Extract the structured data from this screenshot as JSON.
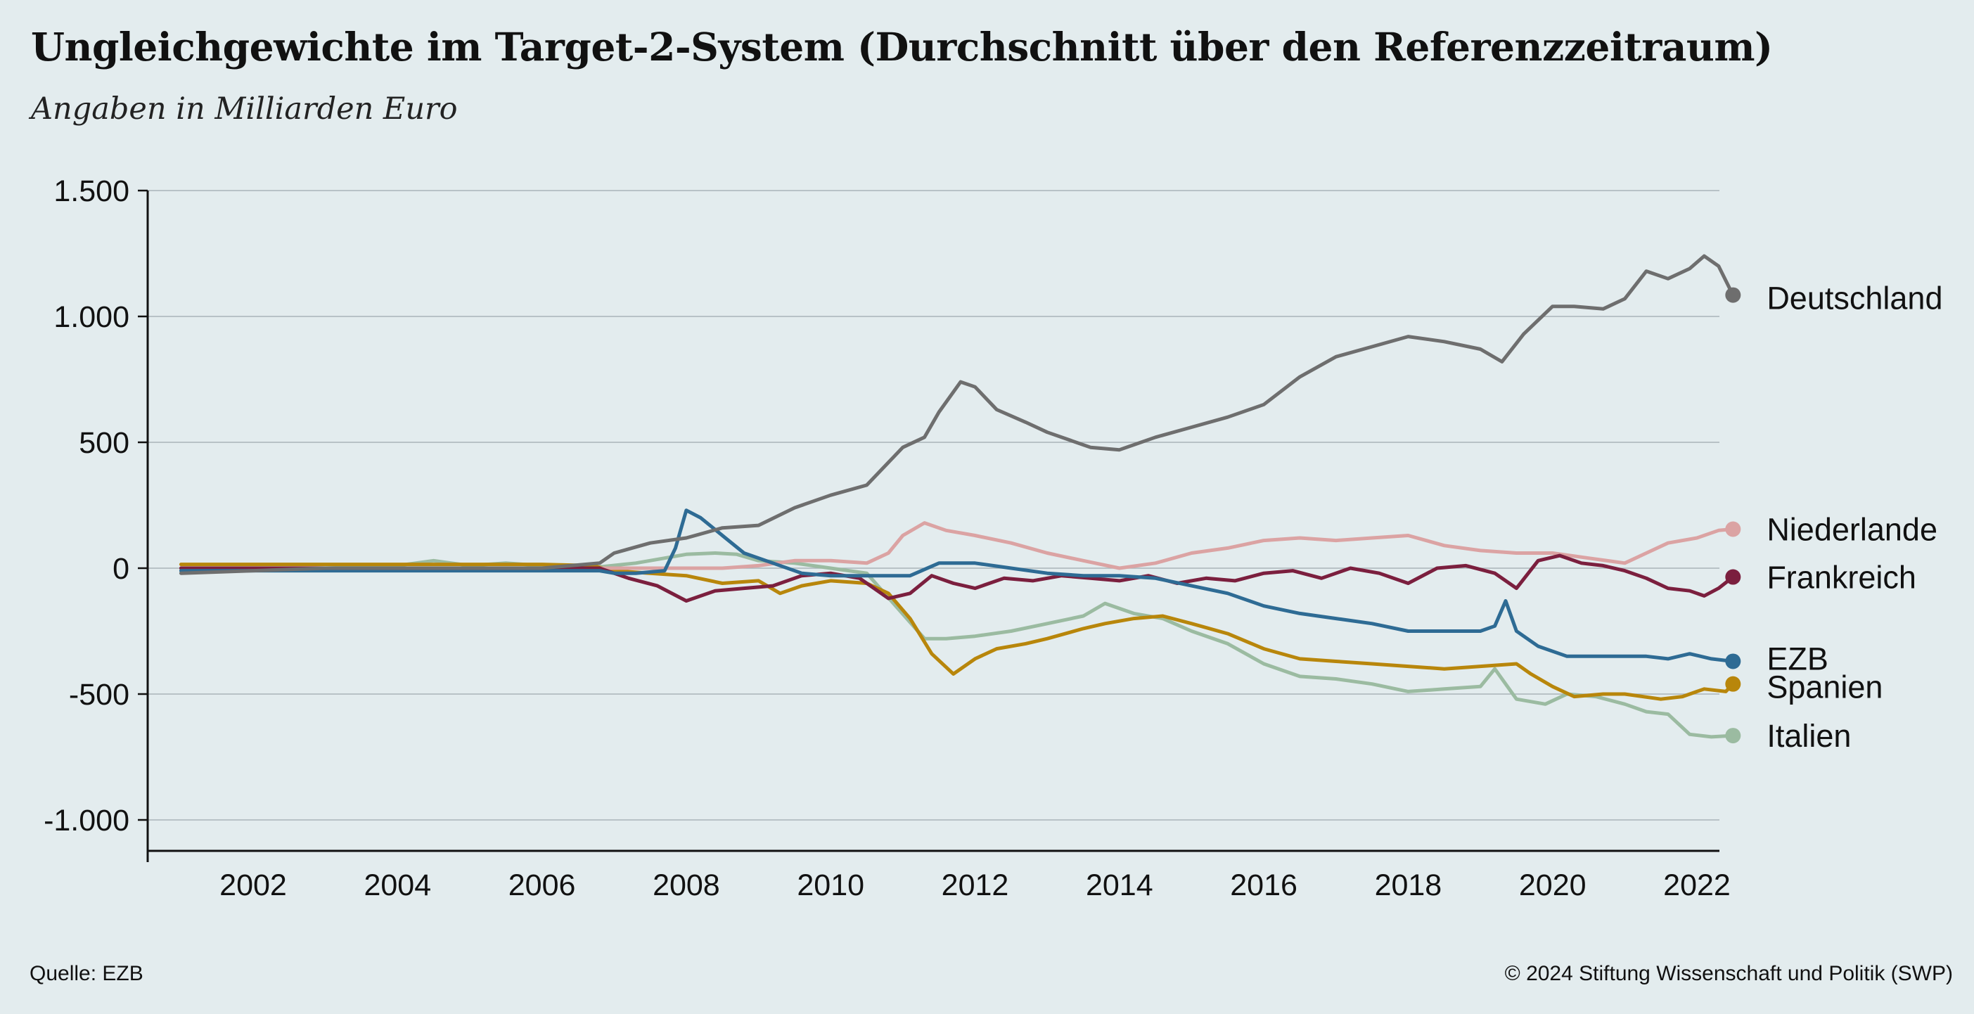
{
  "header": {
    "title": "Ungleichgewichte im Target-2-System (Durchschnitt über den Referenzzeitraum)",
    "subtitle": "Angaben in Milliarden Euro"
  },
  "footer": {
    "source": "Quelle: EZB",
    "copyright": "© 2024 Stiftung Wissenschaft und Politik (SWP)"
  },
  "chart_data": {
    "type": "line",
    "title": "Ungleichgewichte im Target-2-System (Durchschnitt über den Referenzzeitraum)",
    "subtitle": "Angaben in Milliarden Euro",
    "xlabel": "",
    "ylabel": "",
    "xlim": [
      2000.5,
      2022.6
    ],
    "ylim": [
      -1100,
      1500
    ],
    "y_ticks": [
      1500,
      1000,
      500,
      0,
      -500,
      -1000
    ],
    "y_tick_labels": [
      "1.500",
      "1.000",
      "500",
      "0",
      "-500",
      "-1.000"
    ],
    "x_ticks": [
      2002,
      2004,
      2006,
      2008,
      2010,
      2012,
      2014,
      2016,
      2018,
      2020,
      2022
    ],
    "x_tick_labels": [
      "2002",
      "2004",
      "2006",
      "2008",
      "2010",
      "2012",
      "2014",
      "2016",
      "2018",
      "2020",
      "2022"
    ],
    "grid": "horizontal",
    "legend": "direct labels at line ends (right)",
    "colors": {
      "background": "#e3ecee",
      "grid": "#a9b4b8",
      "axis": "#111111"
    },
    "series": [
      {
        "name": "Italien",
        "color": "#9bbba1",
        "x": [
          2001,
          2002,
          2003,
          2004,
          2004.5,
          2005,
          2005.5,
          2006,
          2006.8,
          2007.3,
          2007.7,
          2008,
          2008.4,
          2008.7,
          2009,
          2009.5,
          2010,
          2010.5,
          2010.9,
          2011.3,
          2011.6,
          2012,
          2012.5,
          2013,
          2013.5,
          2013.8,
          2014.2,
          2014.6,
          2015,
          2015.5,
          2016,
          2016.5,
          2017,
          2017.5,
          2018,
          2018.5,
          2019,
          2019.2,
          2019.5,
          2019.9,
          2020.2,
          2020.6,
          2021,
          2021.3,
          2021.6,
          2021.9,
          2022.2,
          2022.5
        ],
        "values": [
          0,
          0,
          0,
          10,
          30,
          10,
          20,
          10,
          5,
          20,
          40,
          55,
          60,
          55,
          30,
          20,
          0,
          -20,
          -150,
          -280,
          -280,
          -270,
          -250,
          -220,
          -190,
          -140,
          -180,
          -200,
          -250,
          -300,
          -380,
          -430,
          -440,
          -460,
          -490,
          -480,
          -470,
          -400,
          -520,
          -540,
          -500,
          -510,
          -540,
          -570,
          -580,
          -660,
          -670,
          -665
        ]
      },
      {
        "name": "Spanien",
        "color": "#b8860b",
        "x": [
          2001,
          2002,
          2003,
          2004,
          2005,
          2006,
          2006.7,
          2007,
          2007.5,
          2008,
          2008.5,
          2009,
          2009.3,
          2009.6,
          2010,
          2010.5,
          2010.8,
          2011.1,
          2011.4,
          2011.7,
          2012,
          2012.3,
          2012.7,
          2013,
          2013.5,
          2013.8,
          2014.2,
          2014.6,
          2015,
          2015.5,
          2016,
          2016.5,
          2017,
          2017.5,
          2018,
          2018.5,
          2019,
          2019.5,
          2019.7,
          2020,
          2020.3,
          2020.7,
          2021,
          2021.5,
          2021.8,
          2022.1,
          2022.4,
          2022.5
        ],
        "values": [
          15,
          15,
          15,
          15,
          15,
          15,
          10,
          -10,
          -20,
          -30,
          -60,
          -50,
          -100,
          -70,
          -50,
          -60,
          -100,
          -200,
          -340,
          -420,
          -360,
          -320,
          -300,
          -280,
          -240,
          -220,
          -200,
          -190,
          -220,
          -260,
          -320,
          -360,
          -370,
          -380,
          -390,
          -400,
          -390,
          -380,
          -420,
          -470,
          -510,
          -500,
          -500,
          -520,
          -510,
          -480,
          -490,
          -460
        ]
      },
      {
        "name": "Niederlande",
        "color": "#dba3a3",
        "x": [
          2001,
          2002,
          2003,
          2004,
          2005,
          2006,
          2007,
          2007.5,
          2008,
          2008.5,
          2009,
          2009.5,
          2010,
          2010.5,
          2010.8,
          2011,
          2011.3,
          2011.6,
          2012,
          2012.5,
          2013,
          2013.5,
          2014,
          2014.5,
          2015,
          2015.5,
          2016,
          2016.5,
          2017,
          2017.5,
          2018,
          2018.5,
          2019,
          2019.5,
          2020,
          2020.5,
          2021,
          2021.3,
          2021.6,
          2022,
          2022.3,
          2022.5
        ],
        "values": [
          0,
          0,
          0,
          0,
          0,
          0,
          0,
          0,
          0,
          0,
          10,
          30,
          30,
          20,
          60,
          130,
          180,
          150,
          130,
          100,
          60,
          30,
          0,
          20,
          60,
          80,
          110,
          120,
          110,
          120,
          130,
          90,
          70,
          60,
          60,
          40,
          20,
          60,
          100,
          120,
          150,
          155
        ]
      },
      {
        "name": "Frankreich",
        "color": "#7b1f3e",
        "x": [
          2001,
          2002,
          2003,
          2004,
          2005,
          2006,
          2006.8,
          2007.2,
          2007.6,
          2008,
          2008.4,
          2008.8,
          2009.2,
          2009.6,
          2010,
          2010.4,
          2010.8,
          2011.1,
          2011.4,
          2011.7,
          2012,
          2012.4,
          2012.8,
          2013.2,
          2013.6,
          2014,
          2014.4,
          2014.8,
          2015.2,
          2015.6,
          2016,
          2016.4,
          2016.8,
          2017.2,
          2017.6,
          2018,
          2018.4,
          2018.8,
          2019.2,
          2019.5,
          2019.8,
          2020.1,
          2020.4,
          2020.7,
          2021,
          2021.3,
          2021.6,
          2021.9,
          2022.1,
          2022.3,
          2022.5
        ],
        "values": [
          0,
          0,
          0,
          0,
          0,
          0,
          0,
          -40,
          -70,
          -130,
          -90,
          -80,
          -70,
          -30,
          -20,
          -40,
          -120,
          -100,
          -30,
          -60,
          -80,
          -40,
          -50,
          -30,
          -40,
          -50,
          -30,
          -60,
          -40,
          -50,
          -20,
          -10,
          -40,
          0,
          -20,
          -60,
          0,
          10,
          -20,
          -80,
          30,
          50,
          20,
          10,
          -10,
          -40,
          -80,
          -90,
          -110,
          -80,
          -35
        ]
      },
      {
        "name": "EZB",
        "color": "#2e6b94",
        "x": [
          2001,
          2002,
          2003,
          2004,
          2005,
          2006,
          2006.8,
          2007,
          2007.3,
          2007.7,
          2007.85,
          2008,
          2008.2,
          2008.5,
          2008.8,
          2009.2,
          2009.6,
          2010,
          2010.5,
          2010.9,
          2011.1,
          2011.5,
          2012,
          2012.5,
          2013,
          2013.5,
          2014,
          2014.5,
          2015,
          2015.5,
          2016,
          2016.5,
          2017,
          2017.5,
          2018,
          2018.5,
          2019,
          2019.2,
          2019.35,
          2019.5,
          2019.8,
          2020.2,
          2020.6,
          2021,
          2021.3,
          2021.6,
          2021.9,
          2022.2,
          2022.5
        ],
        "values": [
          -10,
          -10,
          -10,
          -10,
          -10,
          -10,
          -10,
          -20,
          -20,
          -10,
          80,
          230,
          200,
          130,
          60,
          20,
          -20,
          -30,
          -30,
          -30,
          -30,
          20,
          20,
          0,
          -20,
          -30,
          -30,
          -40,
          -70,
          -100,
          -150,
          -180,
          -200,
          -220,
          -250,
          -250,
          -250,
          -230,
          -130,
          -250,
          -310,
          -350,
          -350,
          -350,
          -350,
          -360,
          -340,
          -360,
          -370
        ]
      },
      {
        "name": "Deutschland",
        "color": "#6e6e6e",
        "x": [
          2001,
          2002,
          2003,
          2004,
          2005,
          2006,
          2006.8,
          2007,
          2007.5,
          2008,
          2008.5,
          2009,
          2009.5,
          2010,
          2010.5,
          2010.8,
          2011,
          2011.3,
          2011.5,
          2011.8,
          2012,
          2012.3,
          2012.7,
          2013,
          2013.3,
          2013.6,
          2014,
          2014.5,
          2015,
          2015.5,
          2016,
          2016.5,
          2017,
          2017.5,
          2018,
          2018.5,
          2019,
          2019.3,
          2019.6,
          2020,
          2020.3,
          2020.7,
          2021,
          2021.3,
          2021.6,
          2021.9,
          2022.1,
          2022.3,
          2022.5
        ],
        "values": [
          -20,
          -10,
          0,
          0,
          0,
          0,
          20,
          60,
          100,
          120,
          160,
          170,
          240,
          290,
          330,
          420,
          480,
          520,
          620,
          740,
          720,
          630,
          580,
          540,
          510,
          480,
          470,
          520,
          560,
          600,
          650,
          760,
          840,
          880,
          920,
          900,
          870,
          820,
          930,
          1040,
          1040,
          1030,
          1070,
          1180,
          1150,
          1190,
          1240,
          1200,
          1085
        ]
      }
    ]
  }
}
